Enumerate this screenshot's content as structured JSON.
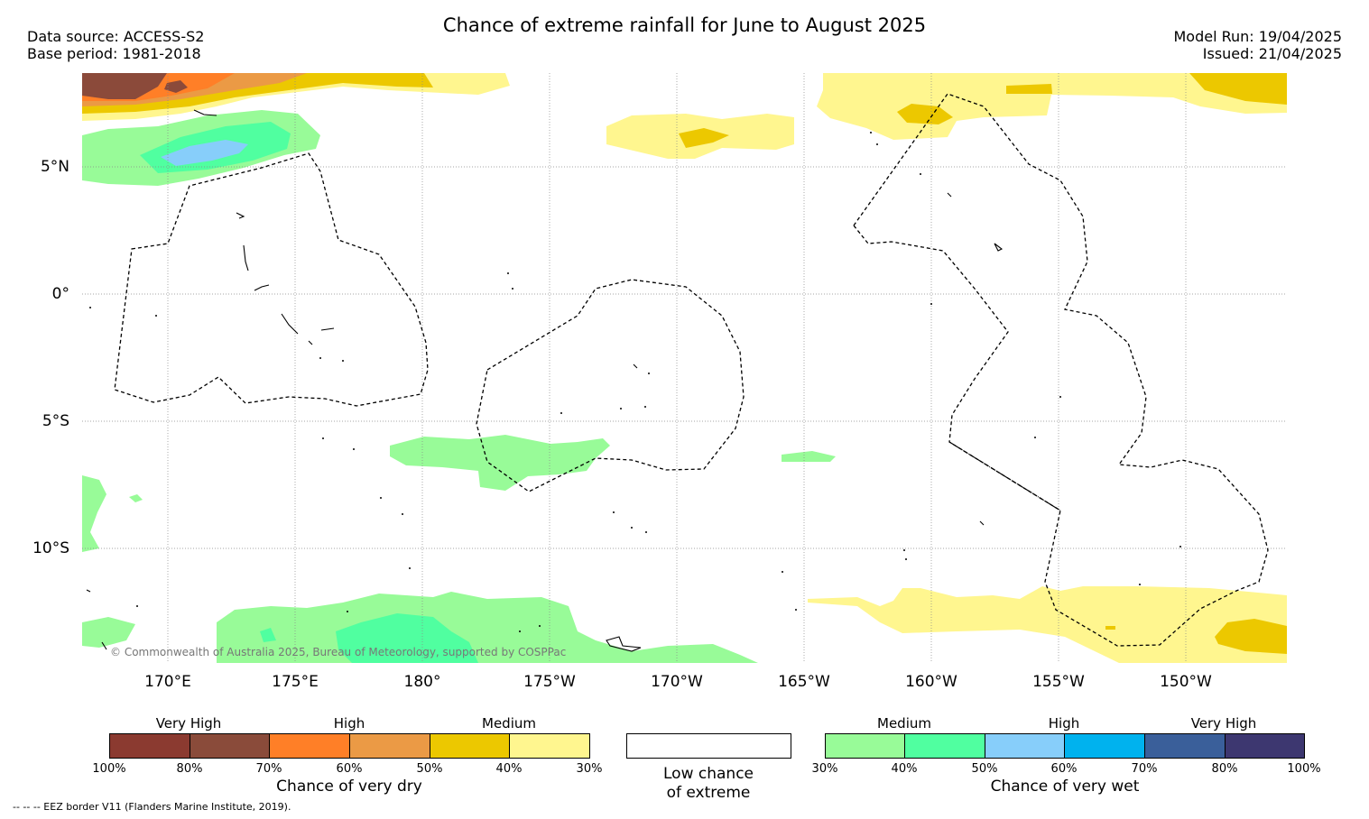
{
  "header": {
    "title": "Chance of extreme rainfall for June to August 2025",
    "data_source": "Data source: ACCESS-S2",
    "base_period": "Base period: 1981-2018",
    "model_run": "Model Run: 19/04/2025",
    "issued": "Issued: 21/04/2025"
  },
  "map": {
    "lat_labels": [
      "5°N",
      "0°",
      "5°S",
      "10°S"
    ],
    "lon_labels": [
      "170°E",
      "175°E",
      "180°",
      "175°W",
      "170°W",
      "165°W",
      "160°W",
      "155°W",
      "150°W"
    ],
    "copyright": "© Commonwealth of Australia 2025, Bureau of Meteorology, supported by COSPPac",
    "eez_note": "--  --  -- EEZ border V11 (Flanders Marine Institute, 2019)."
  },
  "legend": {
    "dry": {
      "title": "Chance of very dry",
      "categories": [
        "Very High",
        "High",
        "Medium"
      ],
      "colors": [
        "#8b3a30",
        "#8a4b3a",
        "#ff7f27",
        "#eb9a45",
        "#ecc800",
        "#fff68f"
      ],
      "ticks": [
        "100%",
        "80%",
        "70%",
        "60%",
        "50%",
        "40%",
        "30%"
      ]
    },
    "low": {
      "title_line1": "Low chance",
      "title_line2": "of extreme"
    },
    "wet": {
      "title": "Chance of very wet",
      "categories": [
        "Medium",
        "High",
        "Very High"
      ],
      "colors": [
        "#98fb98",
        "#50ffa0",
        "#87cefa",
        "#00b2ee",
        "#3a5f9a",
        "#3d3770"
      ],
      "ticks": [
        "30%",
        "40%",
        "50%",
        "60%",
        "70%",
        "80%",
        "100%"
      ]
    }
  }
}
